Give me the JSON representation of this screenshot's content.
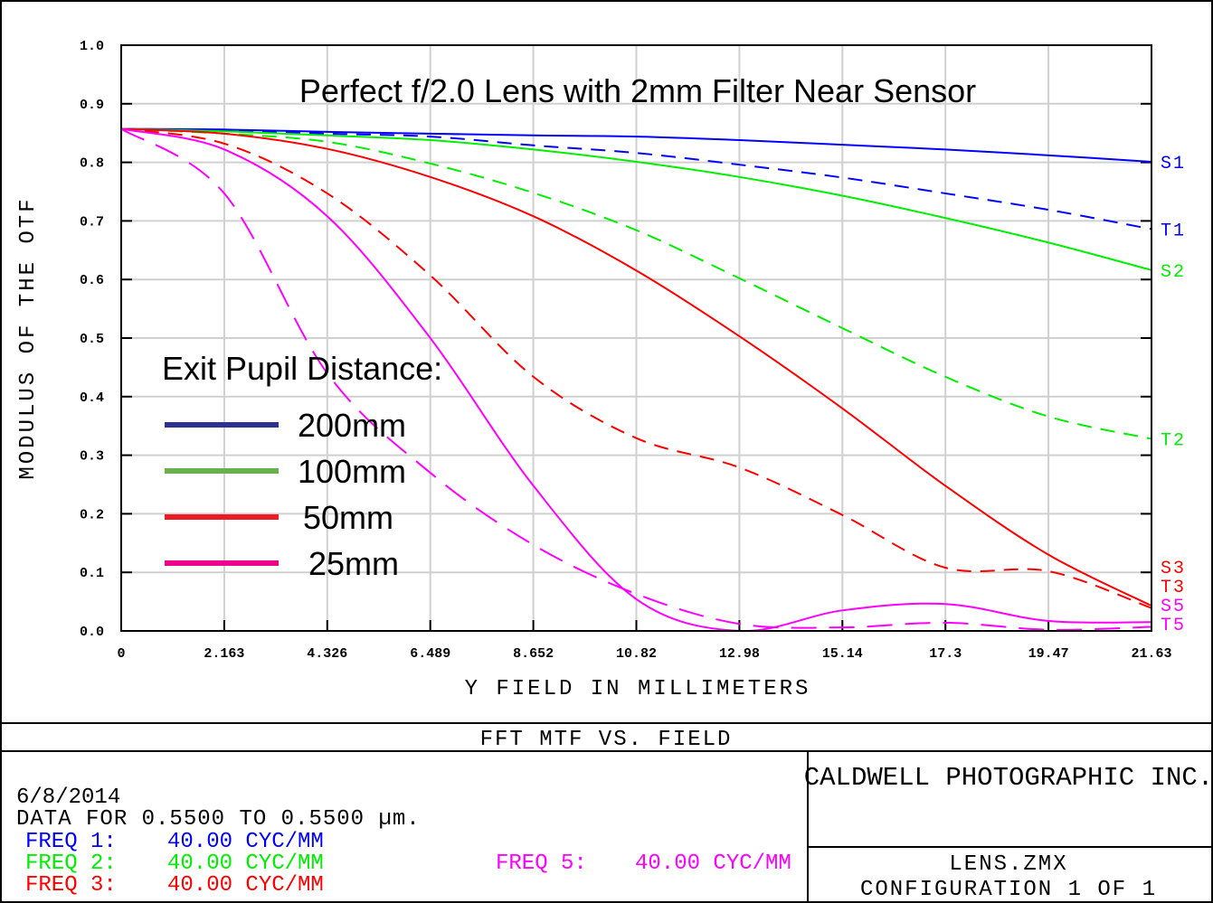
{
  "chart_data": {
    "type": "line",
    "title": "Perfect f/2.0 Lens with 2mm Filter Near Sensor",
    "xlabel": "Y FIELD IN MILLIMETERS",
    "ylabel": "MODULUS OF THE OTF",
    "xlim": [
      0,
      21.63
    ],
    "ylim": [
      0,
      1.0
    ],
    "grid": true,
    "x_ticks": [
      "0",
      "2.163",
      "4.326",
      "6.489",
      "8.652",
      "10.82",
      "12.98",
      "15.14",
      "17.3",
      "19.47",
      "21.63"
    ],
    "y_ticks": [
      "0.0",
      "0.1",
      "0.2",
      "0.3",
      "0.4",
      "0.5",
      "0.6",
      "0.7",
      "0.8",
      "0.9",
      "1.0"
    ],
    "x": [
      0,
      2.163,
      4.326,
      6.489,
      8.652,
      10.82,
      12.98,
      15.14,
      17.3,
      19.47,
      21.63
    ],
    "series": [
      {
        "name": "S1",
        "color": "#0000ff",
        "dashed": false,
        "values": [
          0.857,
          0.856,
          0.852,
          0.849,
          0.846,
          0.844,
          0.838,
          0.83,
          0.822,
          0.812,
          0.801
        ]
      },
      {
        "name": "T1",
        "color": "#0000ff",
        "dashed": true,
        "values": [
          0.857,
          0.855,
          0.849,
          0.844,
          0.829,
          0.816,
          0.796,
          0.774,
          0.747,
          0.719,
          0.686
        ]
      },
      {
        "name": "S2",
        "color": "#00ee00",
        "dashed": false,
        "values": [
          0.857,
          0.853,
          0.846,
          0.838,
          0.822,
          0.801,
          0.775,
          0.743,
          0.705,
          0.663,
          0.616
        ]
      },
      {
        "name": "T2",
        "color": "#00ee00",
        "dashed": true,
        "values": [
          0.857,
          0.849,
          0.835,
          0.798,
          0.748,
          0.684,
          0.602,
          0.517,
          0.434,
          0.366,
          0.328
        ]
      },
      {
        "name": "S3",
        "color": "#ff0000",
        "dashed": false,
        "values": [
          0.857,
          0.849,
          0.823,
          0.775,
          0.708,
          0.615,
          0.503,
          0.38,
          0.248,
          0.13,
          0.043
        ]
      },
      {
        "name": "T3",
        "color": "#ff0000",
        "dashed": true,
        "values": [
          0.857,
          0.832,
          0.747,
          0.607,
          0.434,
          0.329,
          0.279,
          0.198,
          0.108,
          0.102,
          0.039
        ]
      },
      {
        "name": "S5",
        "color": "#ff00ff",
        "dashed": false,
        "values": [
          0.857,
          0.822,
          0.708,
          0.5,
          0.248,
          0.054,
          0.0,
          0.035,
          0.046,
          0.017,
          0.015
        ]
      },
      {
        "name": "T5",
        "color": "#ff00ff",
        "dashed": true,
        "values": [
          0.857,
          0.747,
          0.44,
          0.27,
          0.147,
          0.063,
          0.012,
          0.006,
          0.014,
          0.002,
          0.007
        ]
      }
    ],
    "legend": {
      "title": "Exit Pupil Distance:",
      "placement": "center-left",
      "entries": [
        {
          "label": "200mm",
          "color": "#2e3192"
        },
        {
          "label": "100mm",
          "color": "#6ab04c"
        },
        {
          "label": "50mm",
          "color": "#ed1c24"
        },
        {
          "label": "25mm",
          "color": "#ec008c"
        }
      ]
    }
  },
  "footer": {
    "plot_title": "FFT MTF VS. FIELD",
    "date": "6/8/2014",
    "data_line": "DATA FOR 0.5500 TO 0.5500 µm.",
    "freqs": [
      {
        "label": "FREQ 1:",
        "value": "40.00 CYC/MM",
        "color": "#0000ff"
      },
      {
        "label": "FREQ 2:",
        "value": "40.00 CYC/MM",
        "color": "#00ee00"
      },
      {
        "label": "FREQ 3:",
        "value": "40.00 CYC/MM",
        "color": "#ff0000"
      },
      {
        "label": "FREQ 5:",
        "value": "40.00 CYC/MM",
        "color": "#ff00ff"
      }
    ],
    "company": "CALDWELL PHOTOGRAPHIC INC.",
    "file": "LENS.ZMX",
    "configuration": "CONFIGURATION 1 OF 1"
  }
}
